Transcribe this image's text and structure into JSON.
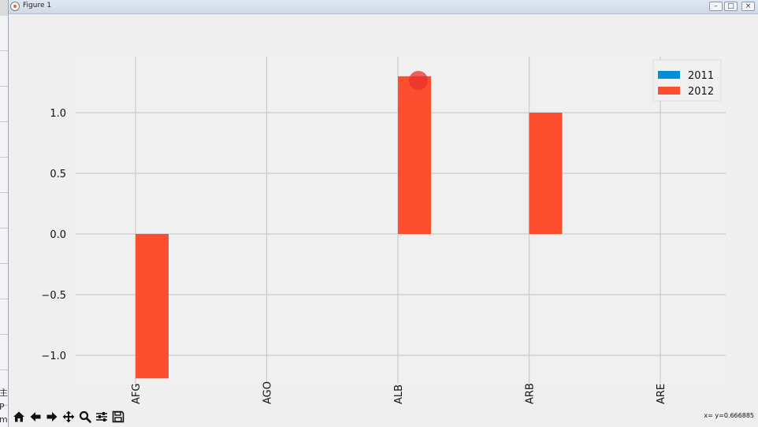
{
  "window": {
    "title": "Figure 1",
    "buttons": [
      "–",
      "□",
      "×"
    ]
  },
  "background": {
    "left_fragments": [
      "主",
      "P",
      "m"
    ]
  },
  "chart_data": {
    "type": "bar",
    "categories": [
      "AFG",
      "AGO",
      "ALB",
      "ARB",
      "ARE"
    ],
    "series": [
      {
        "name": "2011",
        "values": [
          0,
          0,
          0,
          0,
          0
        ],
        "color": "#008fd5"
      },
      {
        "name": "2012",
        "values": [
          -1.19,
          0,
          1.3,
          1.0,
          0
        ],
        "color": "#fc4f30"
      }
    ],
    "ylim": [
      -1.2,
      1.4
    ],
    "yticks": [
      -1.0,
      -0.5,
      0.0,
      0.5,
      1.0
    ],
    "ytick_labels": [
      "−1.0",
      "−0.5",
      "0.0",
      "0.5",
      "1.0"
    ],
    "grid": true,
    "legend_position": "top-right",
    "style": "fivethirtyeight"
  },
  "toolbar": {
    "items": [
      {
        "name": "home-icon"
      },
      {
        "name": "back-icon"
      },
      {
        "name": "forward-icon"
      },
      {
        "name": "pan-icon"
      },
      {
        "name": "zoom-icon"
      },
      {
        "name": "configure-subplots-icon"
      },
      {
        "name": "save-icon"
      }
    ]
  },
  "status": {
    "coords": "x= y=0.666885"
  },
  "colors": {
    "axes_bg": "#f0f0f0",
    "grid": "#cbcbcb",
    "cursor_highlight": "#e8302a"
  }
}
